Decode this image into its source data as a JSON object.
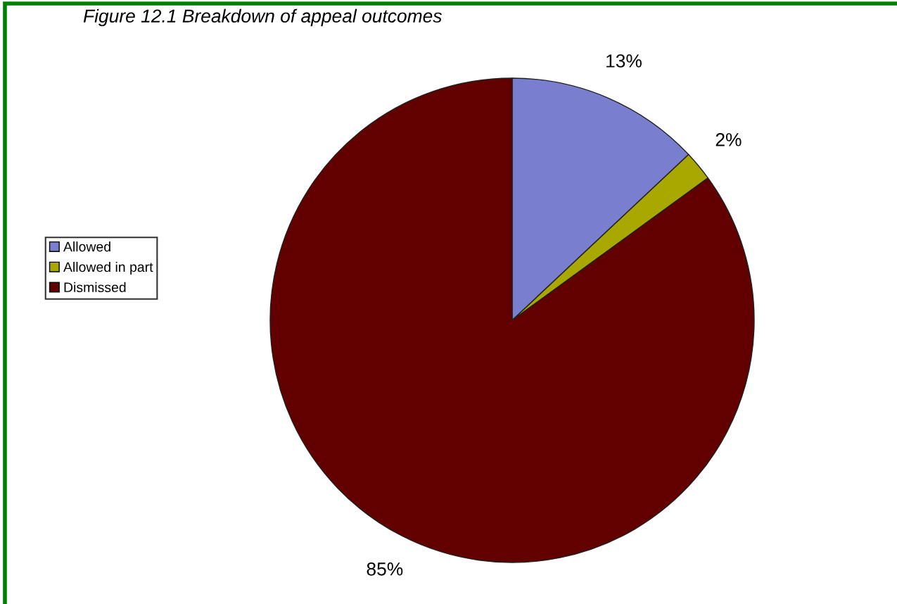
{
  "chart_data": {
    "type": "pie",
    "title": "Figure 12.1 Breakdown of appeal outcomes",
    "categories": [
      "Allowed",
      "Allowed in part",
      "Dismissed"
    ],
    "values": [
      13,
      2,
      85
    ],
    "colors": [
      "#7a7ecf",
      "#a8a800",
      "#620000"
    ],
    "value_labels": [
      "13%",
      "2%",
      "85%"
    ],
    "legend": "left"
  }
}
